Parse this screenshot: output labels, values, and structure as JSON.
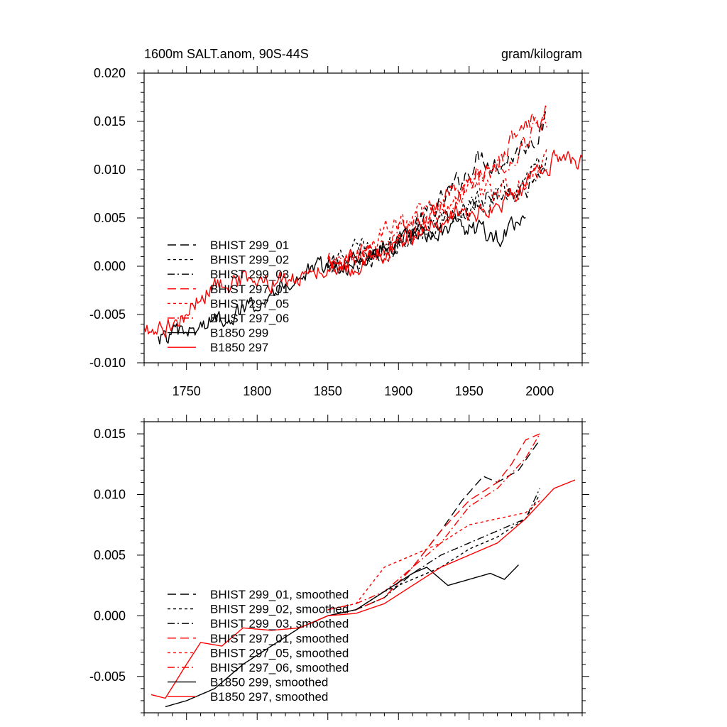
{
  "chart_data": [
    {
      "type": "line",
      "title": "1600m SALT.anom, 90S-44S",
      "units": "gram/kilogram",
      "xlim": [
        1720,
        2030
      ],
      "ylim": [
        -0.01,
        0.02
      ],
      "xticks": [
        1750,
        1800,
        1850,
        1900,
        1950,
        2000
      ],
      "xtick_labels": [
        "1750",
        "1800",
        "1850",
        "1900",
        "1950",
        "2000"
      ],
      "yticks": [
        -0.01,
        -0.005,
        0.0,
        0.005,
        0.01,
        0.015,
        0.02
      ],
      "ytick_labels": [
        "-0.010",
        "-0.005",
        "0.000",
        "0.005",
        "0.010",
        "0.015",
        "0.020"
      ],
      "legend_position": "lower-left",
      "series": [
        {
          "name": "BHIST 299_01",
          "color": "#000000",
          "dash": "long-dash",
          "jitter": 0.0009,
          "x": [
            1850,
            1870,
            1890,
            1910,
            1930,
            1950,
            1958,
            1970,
            1985,
            2000,
            2005
          ],
          "y": [
            0.0,
            0.0005,
            0.0015,
            0.004,
            0.0065,
            0.01,
            0.0115,
            0.0105,
            0.012,
            0.014,
            0.015
          ]
        },
        {
          "name": "BHIST 299_02",
          "color": "#000000",
          "dash": "short-dash",
          "jitter": 0.0009,
          "x": [
            1850,
            1870,
            1890,
            1910,
            1930,
            1950,
            1970,
            1990,
            2005
          ],
          "y": [
            0.0,
            0.0015,
            0.002,
            0.0035,
            0.0045,
            0.006,
            0.007,
            0.0085,
            0.011
          ]
        },
        {
          "name": "BHIST 299_03",
          "color": "#000000",
          "dash": "dash-dot",
          "jitter": 0.0009,
          "x": [
            1850,
            1870,
            1890,
            1910,
            1930,
            1950,
            1970,
            1990,
            2005
          ],
          "y": [
            0.0,
            0.0005,
            0.001,
            0.003,
            0.0045,
            0.006,
            0.0075,
            0.008,
            0.011
          ]
        },
        {
          "name": "BHIST 297_01",
          "color": "#ff0000",
          "dash": "long-dash",
          "jitter": 0.0009,
          "x": [
            1850,
            1870,
            1890,
            1910,
            1930,
            1950,
            1970,
            1985,
            2000,
            2005
          ],
          "y": [
            0.0005,
            0.001,
            0.0015,
            0.0035,
            0.0065,
            0.009,
            0.0105,
            0.014,
            0.0155,
            0.016
          ]
        },
        {
          "name": "BHIST 297_05",
          "color": "#ff0000",
          "dash": "short-dash",
          "jitter": 0.0009,
          "x": [
            1850,
            1870,
            1890,
            1910,
            1930,
            1950,
            1970,
            1990,
            2005
          ],
          "y": [
            0.0005,
            0.001,
            0.0035,
            0.005,
            0.006,
            0.0075,
            0.008,
            0.0085,
            0.0115
          ]
        },
        {
          "name": "BHIST 297_06",
          "color": "#ff0000",
          "dash": "dash-dot",
          "jitter": 0.0009,
          "x": [
            1850,
            1870,
            1890,
            1910,
            1930,
            1950,
            1970,
            1985,
            2000,
            2005
          ],
          "y": [
            0.0005,
            0.001,
            0.002,
            0.0045,
            0.0055,
            0.0085,
            0.0105,
            0.012,
            0.0145,
            0.015
          ]
        },
        {
          "name": "B1850 299",
          "color": "#000000",
          "dash": "solid",
          "jitter": 0.0008,
          "x": [
            1730,
            1750,
            1770,
            1790,
            1810,
            1830,
            1850,
            1870,
            1890,
            1910,
            1930,
            1950,
            1970,
            1990
          ],
          "y": [
            -0.0075,
            -0.007,
            -0.0055,
            -0.0045,
            -0.0025,
            -0.001,
            0.0,
            0.0,
            0.002,
            0.003,
            0.0035,
            0.004,
            0.003,
            0.0045
          ]
        },
        {
          "name": "B1850 297",
          "color": "#ff0000",
          "dash": "solid",
          "jitter": 0.0008,
          "x": [
            1720,
            1730,
            1745,
            1765,
            1785,
            1805,
            1830,
            1850,
            1870,
            1890,
            1910,
            1930,
            1950,
            1970,
            1990,
            2010,
            2030
          ],
          "y": [
            -0.0065,
            -0.0065,
            -0.0055,
            -0.0025,
            -0.0015,
            -0.0015,
            -0.0015,
            0.0,
            0.0,
            0.0015,
            0.003,
            0.0045,
            0.0055,
            0.006,
            0.008,
            0.011,
            0.011
          ]
        }
      ]
    },
    {
      "type": "line",
      "xlim": [
        1720,
        2030
      ],
      "ylim": [
        -0.008,
        0.016
      ],
      "xticks": [
        1750,
        1800,
        1850,
        1900,
        1950,
        2000
      ],
      "yticks": [
        -0.005,
        0.0,
        0.005,
        0.01,
        0.015
      ],
      "ytick_labels": [
        "-0.005",
        "0.000",
        "0.005",
        "0.010",
        "0.015"
      ],
      "legend_position": "lower-left",
      "series": [
        {
          "name": "BHIST 299_01, smoothed",
          "color": "#000000",
          "dash": "long-dash",
          "jitter": 0,
          "x": [
            1850,
            1870,
            1890,
            1910,
            1930,
            1945,
            1960,
            1970,
            1985,
            2000
          ],
          "y": [
            0.0,
            0.0005,
            0.0015,
            0.004,
            0.007,
            0.0095,
            0.0115,
            0.011,
            0.012,
            0.0145
          ]
        },
        {
          "name": "BHIST 299_02, smoothed",
          "color": "#000000",
          "dash": "short-dash",
          "jitter": 0,
          "x": [
            1850,
            1870,
            1890,
            1910,
            1930,
            1950,
            1970,
            1990,
            2000
          ],
          "y": [
            0.0,
            0.0005,
            0.002,
            0.003,
            0.004,
            0.0055,
            0.0065,
            0.008,
            0.01
          ]
        },
        {
          "name": "BHIST 299_03, smoothed",
          "color": "#000000",
          "dash": "dash-dot",
          "jitter": 0,
          "x": [
            1850,
            1870,
            1890,
            1910,
            1930,
            1950,
            1970,
            1990,
            2000
          ],
          "y": [
            0.0,
            0.0005,
            0.0015,
            0.0035,
            0.005,
            0.006,
            0.007,
            0.008,
            0.0105
          ]
        },
        {
          "name": "BHIST 297_01, smoothed",
          "color": "#ff0000",
          "dash": "long-dash",
          "jitter": 0,
          "x": [
            1850,
            1870,
            1890,
            1910,
            1930,
            1950,
            1970,
            1980,
            1990,
            2000
          ],
          "y": [
            0.0,
            0.0005,
            0.0015,
            0.004,
            0.007,
            0.0095,
            0.011,
            0.0125,
            0.0145,
            0.015
          ]
        },
        {
          "name": "BHIST 297_05, smoothed",
          "color": "#ff0000",
          "dash": "short-dash",
          "jitter": 0,
          "x": [
            1850,
            1870,
            1890,
            1910,
            1930,
            1950,
            1970,
            1990,
            2000
          ],
          "y": [
            0.0005,
            0.001,
            0.004,
            0.005,
            0.006,
            0.0075,
            0.008,
            0.0085,
            0.0095
          ]
        },
        {
          "name": "BHIST 297_06, smoothed",
          "color": "#ff0000",
          "dash": "dash-dot",
          "jitter": 0,
          "x": [
            1850,
            1870,
            1890,
            1910,
            1930,
            1950,
            1970,
            1990,
            2000
          ],
          "y": [
            0.0005,
            0.001,
            0.002,
            0.004,
            0.006,
            0.009,
            0.0105,
            0.013,
            0.015
          ]
        },
        {
          "name": "B1850 299, smoothed",
          "color": "#000000",
          "dash": "solid",
          "jitter": 0,
          "x": [
            1735,
            1750,
            1770,
            1790,
            1810,
            1830,
            1850,
            1870,
            1890,
            1910,
            1920,
            1935,
            1950,
            1965,
            1975,
            1985
          ],
          "y": [
            -0.0075,
            -0.007,
            -0.006,
            -0.004,
            -0.0025,
            -0.001,
            0.0,
            0.0005,
            0.002,
            0.0035,
            0.004,
            0.0025,
            0.003,
            0.0035,
            0.003,
            0.0042
          ]
        },
        {
          "name": "B1850 297, smoothed",
          "color": "#ff0000",
          "dash": "solid",
          "jitter": 0,
          "x": [
            1725,
            1735,
            1750,
            1760,
            1775,
            1790,
            1810,
            1830,
            1850,
            1870,
            1890,
            1910,
            1930,
            1950,
            1970,
            1990,
            2010,
            2025
          ],
          "y": [
            -0.0065,
            -0.0068,
            -0.004,
            -0.0022,
            -0.0025,
            -0.001,
            -0.0012,
            -0.001,
            0.0,
            0.0002,
            0.001,
            0.0025,
            0.004,
            0.005,
            0.006,
            0.008,
            0.0105,
            0.0112
          ]
        }
      ]
    }
  ]
}
